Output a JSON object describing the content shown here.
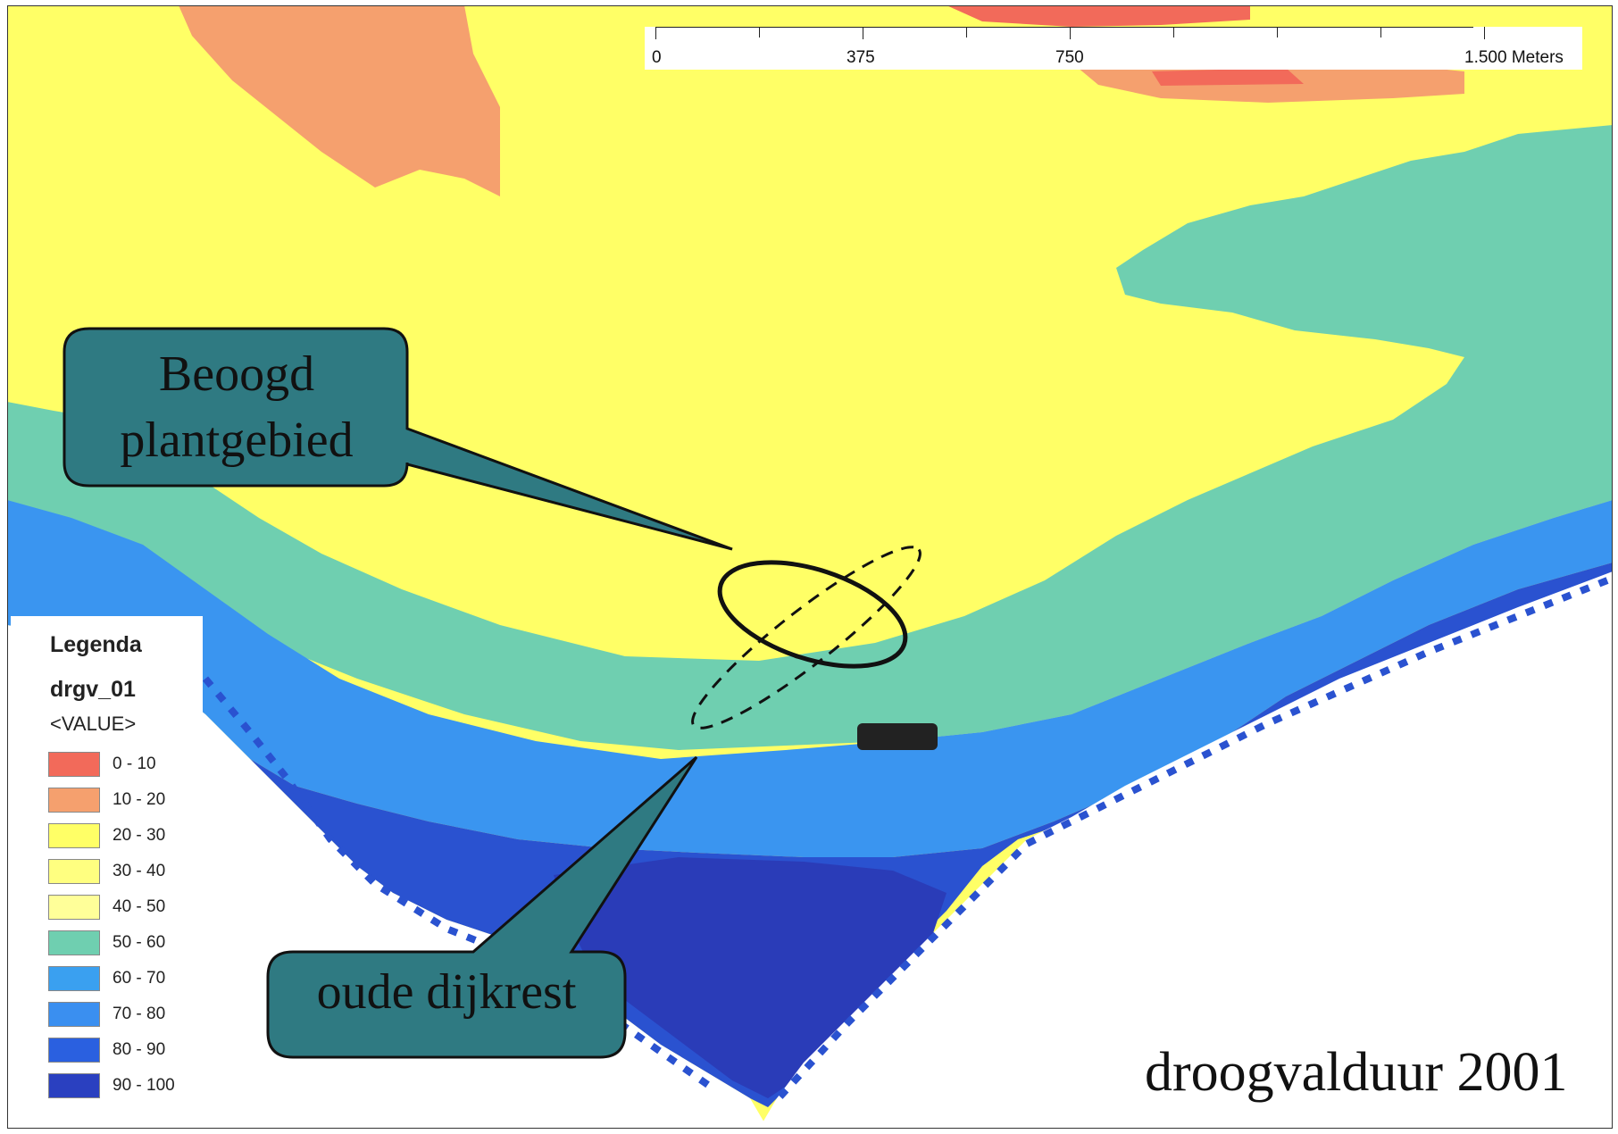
{
  "map_title": "droogvalduur 2001",
  "scale_bar": {
    "labels": [
      "0",
      "375",
      "750",
      "1.500 Meters"
    ]
  },
  "legend": {
    "title": "Legenda",
    "layer": "drgv_01",
    "field": "<VALUE>",
    "classes": [
      {
        "label": "0 - 10",
        "color": "#f26a5a"
      },
      {
        "label": "10 - 20",
        "color": "#f5a06e"
      },
      {
        "label": "20 - 30",
        "color": "#ffff66"
      },
      {
        "label": "30 - 40",
        "color": "#ffff80"
      },
      {
        "label": "40 - 50",
        "color": "#ffff99"
      },
      {
        "label": "50 - 60",
        "color": "#6fcfb0"
      },
      {
        "label": "60 - 70",
        "color": "#3aa0f0"
      },
      {
        "label": "70 - 80",
        "color": "#3a8ff0"
      },
      {
        "label": "80 - 90",
        "color": "#2a60e0"
      },
      {
        "label": "90 - 100",
        "color": "#2a40c0"
      }
    ]
  },
  "callouts": {
    "planting_area": {
      "line1": "Beoogd",
      "line2": "plantgebied"
    },
    "old_dike": "oude dijkrest"
  },
  "colors": {
    "callout_fill": "#2f7a82",
    "callout_stroke": "#111111"
  }
}
